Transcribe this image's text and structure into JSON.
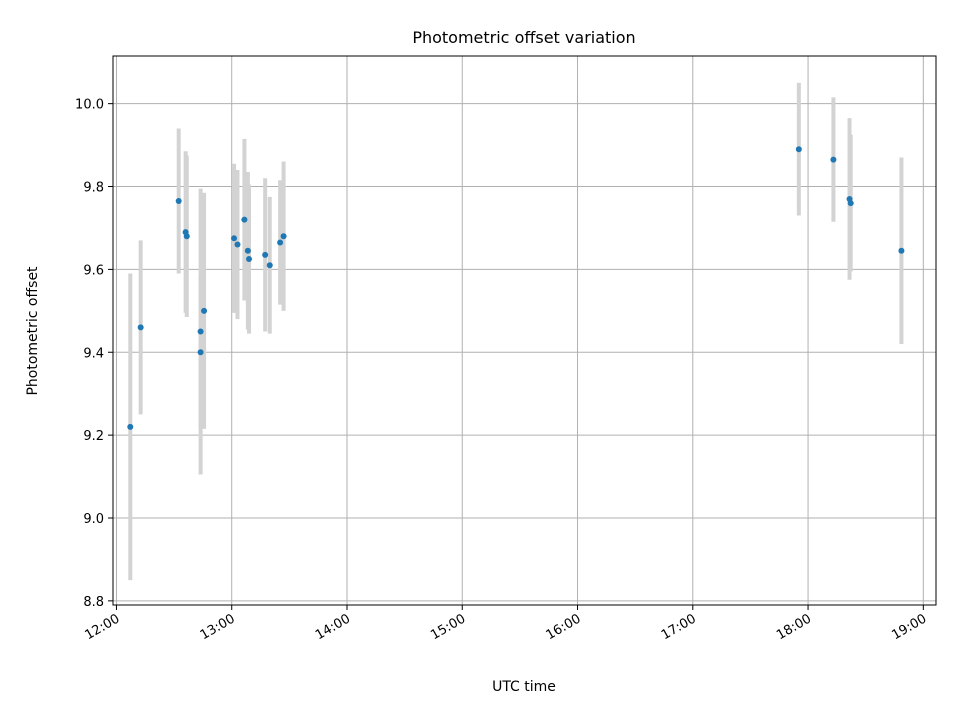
{
  "chart_data": {
    "type": "scatter",
    "title": "Photometric offset variation",
    "xlabel": "UTC time",
    "ylabel": "Photometric offset",
    "grid": true,
    "x_unit": "hours",
    "xlim": [
      11.97,
      19.11
    ],
    "ylim": [
      8.79,
      10.115
    ],
    "x_ticks": [
      {
        "value": 12,
        "label": "12:00"
      },
      {
        "value": 13,
        "label": "13:00"
      },
      {
        "value": 14,
        "label": "14:00"
      },
      {
        "value": 15,
        "label": "15:00"
      },
      {
        "value": 16,
        "label": "16:00"
      },
      {
        "value": 17,
        "label": "17:00"
      },
      {
        "value": 18,
        "label": "18:00"
      },
      {
        "value": 19,
        "label": "19:00"
      }
    ],
    "y_ticks": [
      {
        "value": 8.8,
        "label": "8.8"
      },
      {
        "value": 9.0,
        "label": "9.0"
      },
      {
        "value": 9.2,
        "label": "9.2"
      },
      {
        "value": 9.4,
        "label": "9.4"
      },
      {
        "value": 9.6,
        "label": "9.6"
      },
      {
        "value": 9.8,
        "label": "9.8"
      },
      {
        "value": 10.0,
        "label": "10.0"
      }
    ],
    "point_color": "#1f77b4",
    "errorbar_color": "#d3d3d3",
    "points": [
      {
        "x": 12.12,
        "y": 9.22,
        "err": 0.37
      },
      {
        "x": 12.21,
        "y": 9.46,
        "err": 0.21
      },
      {
        "x": 12.54,
        "y": 9.765,
        "err": 0.175
      },
      {
        "x": 12.6,
        "y": 9.69,
        "err": 0.195
      },
      {
        "x": 12.61,
        "y": 9.68,
        "err": 0.195
      },
      {
        "x": 12.73,
        "y": 9.45,
        "err": 0.345
      },
      {
        "x": 12.73,
        "y": 9.4,
        "err": 0.185
      },
      {
        "x": 12.76,
        "y": 9.5,
        "err": 0.285
      },
      {
        "x": 13.02,
        "y": 9.675,
        "err": 0.18
      },
      {
        "x": 13.05,
        "y": 9.66,
        "err": 0.18
      },
      {
        "x": 13.11,
        "y": 9.72,
        "err": 0.195
      },
      {
        "x": 13.14,
        "y": 9.645,
        "err": 0.19
      },
      {
        "x": 13.15,
        "y": 9.625,
        "err": 0.18
      },
      {
        "x": 13.29,
        "y": 9.635,
        "err": 0.185
      },
      {
        "x": 13.33,
        "y": 9.61,
        "err": 0.165
      },
      {
        "x": 13.42,
        "y": 9.665,
        "err": 0.15
      },
      {
        "x": 13.45,
        "y": 9.68,
        "err": 0.18
      },
      {
        "x": 17.92,
        "y": 9.89,
        "err": 0.16
      },
      {
        "x": 18.22,
        "y": 9.865,
        "err": 0.15
      },
      {
        "x": 18.36,
        "y": 9.77,
        "err": 0.195
      },
      {
        "x": 18.37,
        "y": 9.76,
        "err": 0.165
      },
      {
        "x": 18.81,
        "y": 9.645,
        "err": 0.225
      }
    ]
  }
}
